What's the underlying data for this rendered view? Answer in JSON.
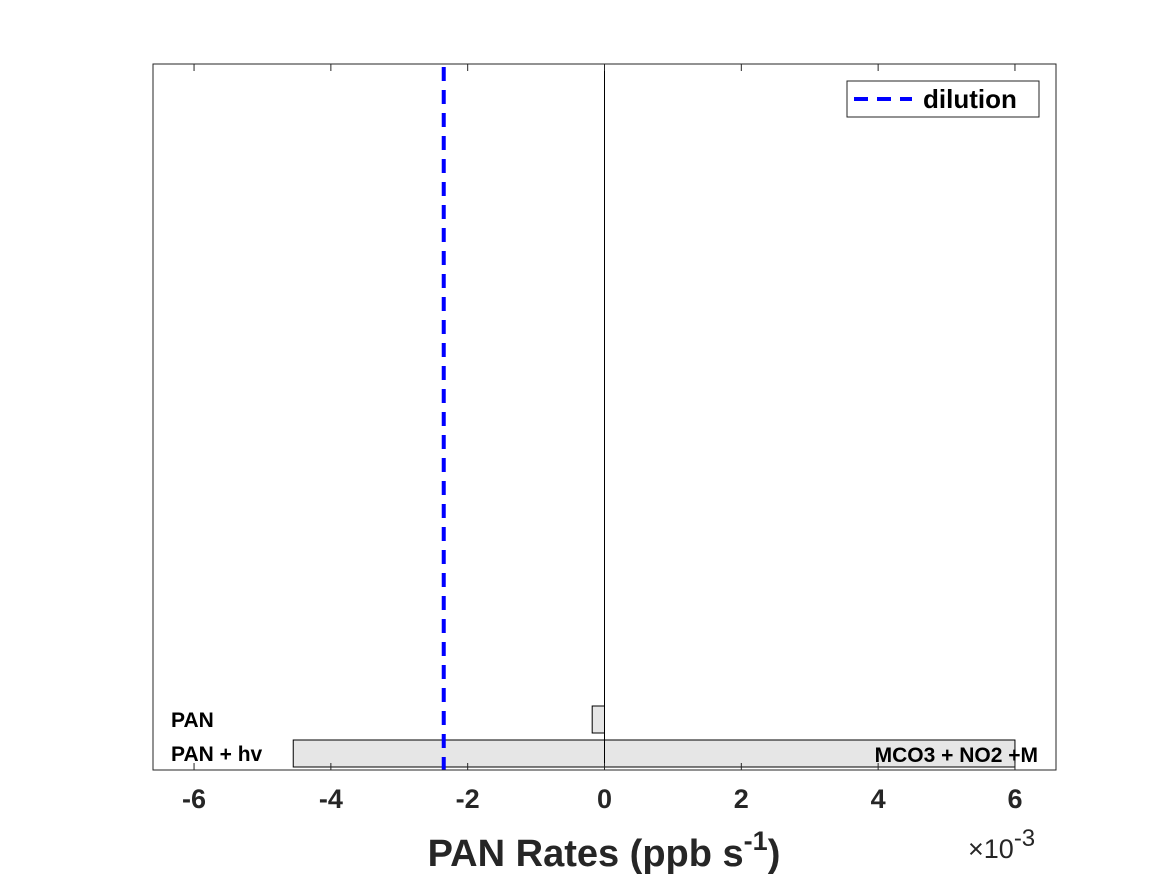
{
  "chart_data": {
    "type": "bar",
    "orientation": "horizontal",
    "stacked": true,
    "xlabel": "PAN Rates (ppb s",
    "xlabel_superscript": "-1",
    "xlabel_suffix": ")",
    "x_multiplier_prefix": "×10",
    "x_multiplier_exponent": "-3",
    "xlim": [
      -6.6,
      6.6
    ],
    "x_ticks": [
      -6,
      -4,
      -2,
      0,
      2,
      4,
      6
    ],
    "x_tick_labels": [
      "-6",
      "-4",
      "-2",
      "0",
      "2",
      "4",
      "6"
    ],
    "grid": false,
    "legend": {
      "position": "top-right",
      "entries": [
        "dilution"
      ]
    },
    "categories": [
      "PAN + hv",
      "PAN"
    ],
    "segments": [
      {
        "category": "PAN + hv",
        "label_left": "PAN + hv",
        "label_right": "MCO3 + NO2 +M",
        "start": -4.55,
        "end": 6.0
      },
      {
        "category": "PAN",
        "label_left": "PAN",
        "label_right": "",
        "start": -0.18,
        "end": 0.0
      }
    ],
    "reference_lines": [
      {
        "name": "dilution",
        "x": -2.35,
        "style": "dashed",
        "color": "#0000ff"
      }
    ],
    "bar_fill": "#e6e6e6",
    "bar_edge": "#000000"
  }
}
